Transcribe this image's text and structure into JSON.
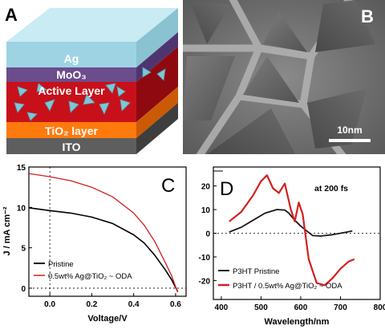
{
  "panels": {
    "a": {
      "letter": "A",
      "layers": [
        {
          "name": "Ag",
          "color": "#9ed3e3"
        },
        {
          "name": "MoO₃",
          "color": "#6b4c8c"
        },
        {
          "name": "Active Layer",
          "color": "#c8101a"
        },
        {
          "name": "TiO₂ layer",
          "color": "#ff7a0d"
        },
        {
          "name": "ITO",
          "color": "#5e5e5e"
        }
      ],
      "nanoparticle_color": "#7ec7d6"
    },
    "b": {
      "letter": "B",
      "scale_label": "10nm"
    },
    "c": {
      "letter": "C",
      "xlabel": "Voltage/V",
      "ylabel": "J / mA cm⁻²",
      "legend": [
        "Pristine",
        "0.5wt% Ag@TiO₂ ~ ODA"
      ]
    },
    "d": {
      "letter": "D",
      "annotation": "at 200 fs",
      "xlabel": "Wavelength/nm",
      "legend": [
        "P3HT Pristine",
        "P3HT / 0.5wt% Ag@TiO₂ ~ ODA"
      ]
    }
  },
  "chart_data": [
    {
      "type": "line",
      "panel": "C",
      "xlabel": "Voltage/V",
      "ylabel": "J / mA cm⁻²",
      "xlim": [
        -0.1,
        0.65
      ],
      "ylim": [
        -1,
        15
      ],
      "xticks": [
        0.0,
        0.2,
        0.4,
        0.6
      ],
      "yticks": [
        0,
        5,
        10,
        15
      ],
      "reference_lines": {
        "x": 0,
        "y": 0
      },
      "series": [
        {
          "name": "Pristine",
          "color": "#000000",
          "x": [
            -0.1,
            0.0,
            0.1,
            0.2,
            0.3,
            0.4,
            0.45,
            0.5,
            0.55,
            0.58,
            0.6,
            0.61
          ],
          "y": [
            9.95,
            9.6,
            9.3,
            8.8,
            8.0,
            6.6,
            5.6,
            4.1,
            2.3,
            1.1,
            0.1,
            -0.4
          ]
        },
        {
          "name": "0.5wt% Ag@TiO₂ ~ ODA",
          "color": "#d02020",
          "x": [
            -0.1,
            0.0,
            0.1,
            0.2,
            0.3,
            0.4,
            0.45,
            0.5,
            0.55,
            0.58,
            0.6,
            0.61
          ],
          "y": [
            14.2,
            13.8,
            13.3,
            12.5,
            11.3,
            9.3,
            7.8,
            5.8,
            3.2,
            1.6,
            0.2,
            -0.5
          ]
        }
      ]
    },
    {
      "type": "line",
      "panel": "D",
      "xlabel": "Wavelength/nm",
      "xlim": [
        380,
        800
      ],
      "ylim": [
        -28,
        28
      ],
      "xticks": [
        400,
        500,
        600,
        700,
        800
      ],
      "yticks": [
        -20,
        -10,
        0,
        10,
        20
      ],
      "reference_lines": {
        "y": 0
      },
      "series": [
        {
          "name": "P3HT Pristine",
          "color": "#1a1a1a",
          "x": [
            420,
            450,
            480,
            510,
            540,
            560,
            570,
            585,
            600,
            615,
            630,
            650,
            680,
            710,
            730
          ],
          "y": [
            0.5,
            2.5,
            5.5,
            8.5,
            10,
            9.8,
            8.5,
            5.5,
            3,
            1,
            -1,
            -1.2,
            -0.6,
            0.3,
            1
          ]
        },
        {
          "name": "P3HT / 0.5wt% Ag@TiO₂ ~ ODA",
          "color": "#d42020",
          "x": [
            420,
            450,
            480,
            500,
            515,
            530,
            545,
            560,
            575,
            585,
            595,
            605,
            620,
            640,
            660,
            680,
            700,
            720,
            735
          ],
          "y": [
            5,
            9,
            16,
            22,
            24.5,
            19,
            17,
            21,
            10,
            5,
            13,
            8,
            -11,
            -21,
            -22,
            -19,
            -15,
            -12,
            -11
          ]
        }
      ]
    }
  ]
}
